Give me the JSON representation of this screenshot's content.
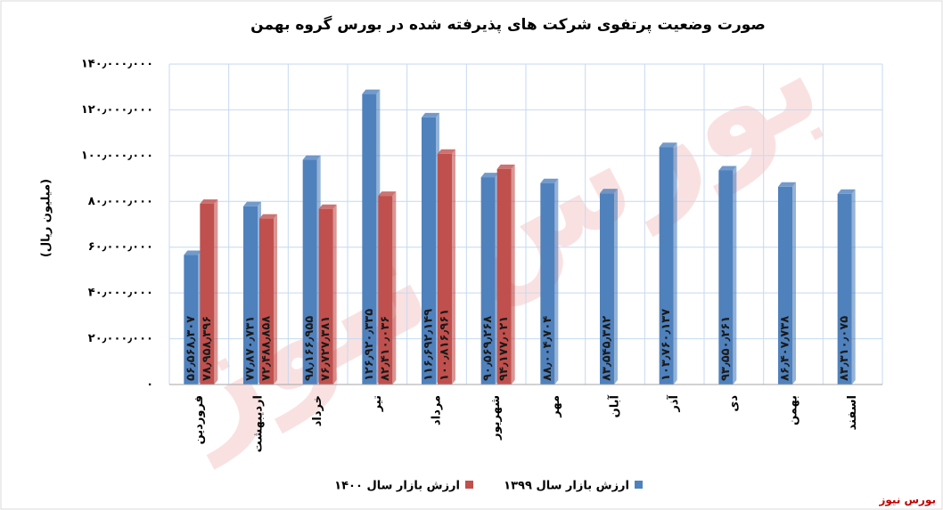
{
  "chart_data": {
    "type": "bar",
    "title": "صورت وضعیت پرتفوی شرکت های پذیرفته شده در بورس گروه بهمن",
    "y_label": "(میلیون ریال)",
    "source": "بورس نیوز",
    "watermark": "بورس نیوز",
    "categories": [
      "فروردین",
      "اردیبهشت",
      "خرداد",
      "تیر",
      "مرداد",
      "شهریور",
      "مهر",
      "آبان",
      "آذر",
      "دی",
      "بهمن",
      "اسفند"
    ],
    "series": [
      {
        "name": "ارزش بازار سال ۱۳۹۹",
        "color": "#4f81bd",
        "values": [
          56568307,
          77870731,
          98166955,
          126920335,
          116692149,
          90569268,
          88004704,
          83545382,
          103760137,
          93550261,
          86407738,
          83310075
        ],
        "value_labels": [
          "۵۶٫۵۶۸٫۳۰۷",
          "۷۷٫۸۷۰٫۷۳۱",
          "۹۸٫۱۶۶٫۹۵۵",
          "۱۲۶٫۹۲۰٫۳۳۵",
          "۱۱۶٫۶۹۲٫۱۴۹",
          "۹۰٫۵۶۹٫۲۶۸",
          "۸۸٫۰۰۴٫۷۰۴",
          "۸۳٫۵۴۵٫۳۸۲",
          "۱۰۳٫۷۶۰٫۱۳۷",
          "۹۳٫۵۵۰٫۲۶۱",
          "۸۶٫۴۰۷٫۷۳۸",
          "۸۳٫۳۱۰٫۰۷۵"
        ]
      },
      {
        "name": "ارزش بازار سال ۱۴۰۰",
        "color": "#c0504d",
        "values": [
          78958396,
          72488858,
          76727381,
          82410036,
          100816961,
          94177021,
          null,
          null,
          null,
          null,
          null,
          null
        ],
        "value_labels": [
          "۷۸٫۹۵۸٫۳۹۶",
          "۷۲٫۴۸۸٫۸۵۸",
          "۷۶٫۷۲۷٫۳۸۱",
          "۸۲٫۴۱۰٫۰۳۶",
          "۱۰۰٫۸۱۶٫۹۶۱",
          "۹۴٫۱۷۷٫۰۲۱",
          null,
          null,
          null,
          null,
          null,
          null
        ]
      }
    ],
    "ylim": [
      0,
      140000000
    ],
    "yticks": [
      {
        "value": 0,
        "label": "۰"
      },
      {
        "value": 20000000,
        "label": "۲۰٫۰۰۰٫۰۰۰"
      },
      {
        "value": 40000000,
        "label": "۴۰٫۰۰۰٫۰۰۰"
      },
      {
        "value": 60000000,
        "label": "۶۰٫۰۰۰٫۰۰۰"
      },
      {
        "value": 80000000,
        "label": "۸۰٫۰۰۰٫۰۰۰"
      },
      {
        "value": 100000000,
        "label": "۱۰۰٫۰۰۰٫۰۰۰"
      },
      {
        "value": 120000000,
        "label": "۱۲۰٫۰۰۰٫۰۰۰"
      },
      {
        "value": 140000000,
        "label": "۱۴۰٫۰۰۰٫۰۰۰"
      }
    ],
    "grid": true,
    "legend": "bottom"
  }
}
